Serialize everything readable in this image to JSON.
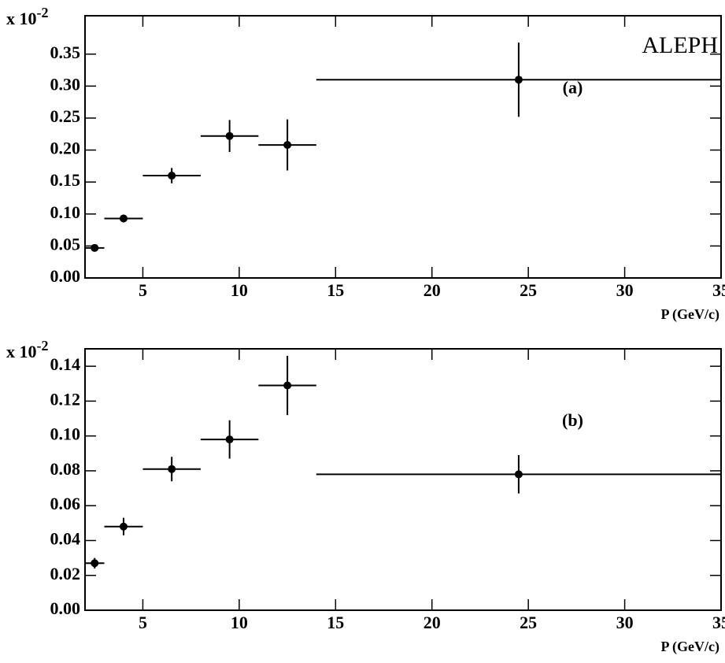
{
  "chart_data": [
    {
      "type": "scatter",
      "y_scale_label": "x 10",
      "y_scale_exponent": "-2",
      "annotation": "ALEPH",
      "panel_label": "(a)",
      "xlabel": "P (GeV/c)",
      "xlim": [
        2,
        35
      ],
      "xticks": [
        5,
        10,
        15,
        20,
        25,
        30,
        35
      ],
      "ylim": [
        0,
        0.41
      ],
      "yticks": [
        {
          "value": 0,
          "label": "0.00"
        },
        0.05,
        {
          "value": 0.1,
          "label": "0.10"
        },
        0.15,
        {
          "value": 0.2,
          "label": "0.20"
        },
        0.25,
        {
          "value": 0.3,
          "label": "0.30"
        },
        0.35
      ],
      "series": [
        {
          "color": "#000000",
          "x": [
            2.5,
            4,
            6.5,
            9.5,
            12.5,
            24.5
          ],
          "values": [
            0.047,
            0.093,
            0.16,
            0.222,
            0.208,
            0.31
          ],
          "xerr": [
            0.5,
            1,
            1.5,
            1.5,
            1.5,
            10.5
          ],
          "yerr": [
            0.004,
            0.006,
            0.012,
            0.025,
            0.04,
            0.058
          ]
        }
      ]
    },
    {
      "type": "scatter",
      "y_scale_label": "x 10",
      "y_scale_exponent": "-2",
      "panel_label": "(b)",
      "xlabel": "P (GeV/c)",
      "xlim": [
        2,
        35
      ],
      "xticks": [
        5,
        10,
        15,
        20,
        25,
        30,
        35
      ],
      "ylim": [
        0,
        0.15
      ],
      "yticks": [
        {
          "value": 0,
          "label": "0.00"
        },
        0.02,
        0.04,
        0.06,
        0.08,
        {
          "value": 0.1,
          "label": "0.10"
        },
        0.12,
        0.14
      ],
      "series": [
        {
          "color": "#000000",
          "x": [
            2.5,
            4,
            6.5,
            9.5,
            12.5,
            24.5
          ],
          "values": [
            0.027,
            0.048,
            0.081,
            0.098,
            0.129,
            0.078
          ],
          "xerr": [
            0.5,
            1,
            1.5,
            1.5,
            1.5,
            10.5
          ],
          "yerr": [
            0.003,
            0.005,
            0.007,
            0.011,
            0.017,
            0.011
          ]
        }
      ]
    }
  ]
}
